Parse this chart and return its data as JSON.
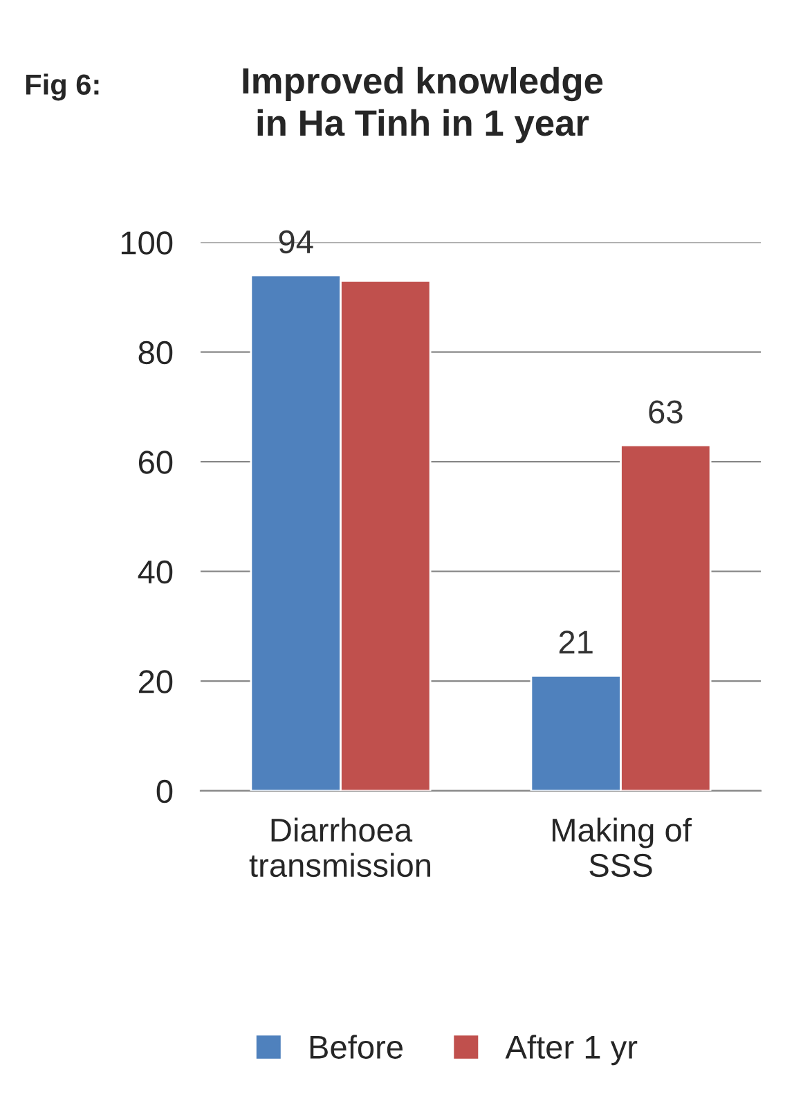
{
  "chart_data": {
    "type": "bar",
    "title": "Improved knowledge\nin Ha Tinh in 1 year",
    "annotations": [
      "Fig 6:"
    ],
    "categories": [
      "Diarrhoea\ntransmission",
      "Making of\nSSS"
    ],
    "series": [
      {
        "name": "Before",
        "color": "#4f81bd",
        "values": [
          94,
          21
        ],
        "value_labels": [
          "94",
          "21"
        ]
      },
      {
        "name": "After 1 yr",
        "color": "#c0504d",
        "values": [
          93,
          63
        ],
        "value_labels": [
          null,
          "63"
        ]
      }
    ],
    "ylim": [
      0,
      100
    ],
    "yticks": [
      0,
      20,
      40,
      60,
      80,
      100
    ],
    "grid": "y",
    "legend": "bottom"
  }
}
